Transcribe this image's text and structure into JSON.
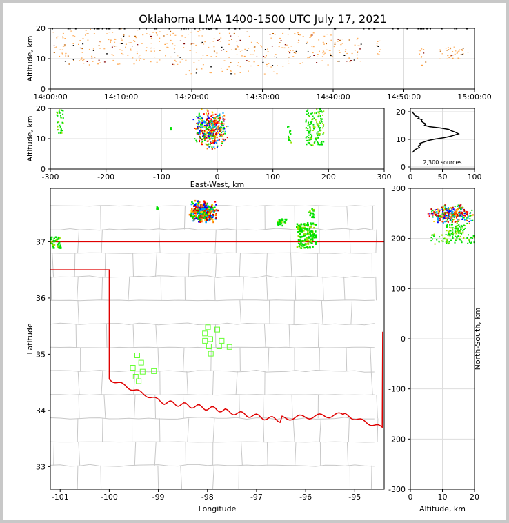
{
  "title": "Oklahoma LMA 1400-1500 UTC July 17, 2021",
  "colors": {
    "frame": "#c8c8c8",
    "state_border": "#e00000",
    "county": "#c8c8c8",
    "station": "#66ff33",
    "grid": "#dddddd",
    "palette": [
      "#0000ff",
      "#00a0ff",
      "#00e000",
      "#9be000",
      "#ffd000",
      "#ff8000",
      "#ff0000",
      "#c00000",
      "#400000"
    ]
  },
  "chart_data": [
    {
      "id": "time_height",
      "type": "scatter",
      "ylabel": "Altitude, km",
      "xlim": [
        "14:00:00",
        "15:00:00"
      ],
      "ylim": [
        0,
        20
      ],
      "xticks": [
        "14:00:00",
        "14:10:00",
        "14:20:00",
        "14:30:00",
        "14:40:00",
        "14:50:00",
        "15:00:00"
      ],
      "yticks": [
        0,
        10,
        20
      ],
      "clusters": [
        {
          "t": [
            "14:00:00",
            "14:02:00"
          ],
          "alt": [
            10,
            20
          ]
        },
        {
          "t": [
            "14:02:00",
            "14:12:00"
          ],
          "alt": [
            8,
            20
          ]
        },
        {
          "t": [
            "14:12:00",
            "14:19:00"
          ],
          "alt": [
            8,
            20
          ]
        },
        {
          "t": [
            "14:19:00",
            "14:26:00"
          ],
          "alt": [
            5,
            20
          ]
        },
        {
          "t": [
            "14:26:00",
            "14:33:00"
          ],
          "alt": [
            5,
            19
          ]
        },
        {
          "t": [
            "14:33:00",
            "14:40:00"
          ],
          "alt": [
            8,
            19
          ]
        },
        {
          "t": [
            "14:40:00",
            "14:44:00"
          ],
          "alt": [
            9,
            17
          ]
        },
        {
          "t": [
            "14:46:00",
            "14:47:00"
          ],
          "alt": [
            11,
            16
          ]
        },
        {
          "t": [
            "14:52:00",
            "14:53:00"
          ],
          "alt": [
            8,
            14
          ]
        },
        {
          "t": [
            "14:55:00",
            "14:59:00"
          ],
          "alt": [
            10,
            14
          ]
        }
      ]
    },
    {
      "id": "east_west_height",
      "type": "scatter",
      "xlabel": "East-West, km",
      "ylabel": "Altitude, km",
      "xlim": [
        -300,
        300
      ],
      "ylim": [
        0,
        20
      ],
      "xticks": [
        -300,
        -200,
        -100,
        0,
        100,
        200,
        300
      ],
      "yticks": [
        0,
        10,
        20
      ],
      "clusters": [
        {
          "x": [
            -290,
            -278
          ],
          "alt": [
            12,
            20
          ],
          "dense": false
        },
        {
          "x": [
            -45,
            20
          ],
          "alt": [
            6,
            20
          ],
          "dense": true
        },
        {
          "x": [
            -85,
            -84
          ],
          "alt": [
            13,
            14
          ],
          "dense": false
        },
        {
          "x": [
            125,
            132
          ],
          "alt": [
            8,
            15
          ],
          "dense": false
        },
        {
          "x": [
            158,
            190
          ],
          "alt": [
            8,
            20
          ],
          "dense": false
        }
      ]
    },
    {
      "id": "altitude_histogram",
      "type": "line",
      "xlim": [
        0,
        100
      ],
      "ylim": [
        0,
        20
      ],
      "xticks": [
        0,
        50,
        100
      ],
      "yticks": [
        0,
        10,
        20
      ],
      "annotation": "2,300 sources",
      "x": [
        2,
        5,
        6,
        10,
        14,
        12,
        16,
        15,
        22,
        28,
        38,
        52,
        62,
        75,
        70,
        64,
        60,
        48,
        30,
        22,
        24,
        20,
        17,
        18,
        12,
        14,
        7,
        6,
        4,
        3
      ],
      "y": [
        5.2,
        5.6,
        6.1,
        6.6,
        7.1,
        7.6,
        8.1,
        8.6,
        9.1,
        9.6,
        10.1,
        10.6,
        11.1,
        12.0,
        12.6,
        13.1,
        13.6,
        14.1,
        14.6,
        15.1,
        15.6,
        16.1,
        16.6,
        17.1,
        17.6,
        18.1,
        18.6,
        19.1,
        19.6,
        20.0
      ]
    },
    {
      "id": "plan_view",
      "type": "scatter",
      "xlabel": "Longitude",
      "ylabel": "Latitude",
      "xlim": [
        -101.2,
        -94.4
      ],
      "ylim": [
        32.6,
        37.95
      ],
      "xticks": [
        -101,
        -100,
        -99,
        -98,
        -97,
        -96,
        -95
      ],
      "yticks": [
        33,
        34,
        35,
        36,
        37
      ],
      "clusters": [
        {
          "lon": [
            -101.2,
            -101.0
          ],
          "lat": [
            36.9,
            37.1
          ],
          "dense": false
        },
        {
          "lon": [
            -98.4,
            -97.8
          ],
          "lat": [
            37.35,
            37.75
          ],
          "dense": true
        },
        {
          "lon": [
            -96.6,
            -96.4
          ],
          "lat": [
            37.3,
            37.42
          ],
          "dense": false
        },
        {
          "lon": [
            -96.2,
            -95.8
          ],
          "lat": [
            36.9,
            37.35
          ],
          "dense": false
        },
        {
          "lon": [
            -95.95,
            -95.85
          ],
          "lat": [
            37.45,
            37.6
          ],
          "dense": false
        },
        {
          "lon": [
            -99.05,
            -99.02
          ],
          "lat": [
            37.58,
            37.64
          ],
          "dense": false
        }
      ],
      "stations": [
        [
          -99.43,
          34.98
        ],
        [
          -99.35,
          34.85
        ],
        [
          -99.52,
          34.76
        ],
        [
          -99.32,
          34.69
        ],
        [
          -99.46,
          34.6
        ],
        [
          -99.4,
          34.52
        ],
        [
          -99.09,
          34.7
        ],
        [
          -97.99,
          35.48
        ],
        [
          -98.05,
          35.37
        ],
        [
          -98.05,
          35.24
        ],
        [
          -97.94,
          35.27
        ],
        [
          -97.8,
          35.44
        ],
        [
          -97.71,
          35.24
        ],
        [
          -97.97,
          35.14
        ],
        [
          -97.76,
          35.14
        ],
        [
          -97.93,
          35.01
        ],
        [
          -97.55,
          35.13
        ]
      ]
    },
    {
      "id": "north_south_height",
      "type": "scatter",
      "xlabel": "Altitude, km",
      "ylabel": "North-South, km",
      "xlim": [
        0,
        20
      ],
      "ylim": [
        -300,
        300
      ],
      "xticks": [
        0,
        10,
        20
      ],
      "yticks": [
        -300,
        -200,
        -100,
        0,
        100,
        200,
        300
      ],
      "clusters": [
        {
          "alt": [
            5,
            20
          ],
          "ns": [
            230,
            270
          ],
          "dense": true
        },
        {
          "alt": [
            6,
            20
          ],
          "ns": [
            190,
            210
          ],
          "dense": false
        },
        {
          "alt": [
            11,
            17
          ],
          "ns": [
            210,
            230
          ],
          "dense": false
        }
      ]
    }
  ]
}
